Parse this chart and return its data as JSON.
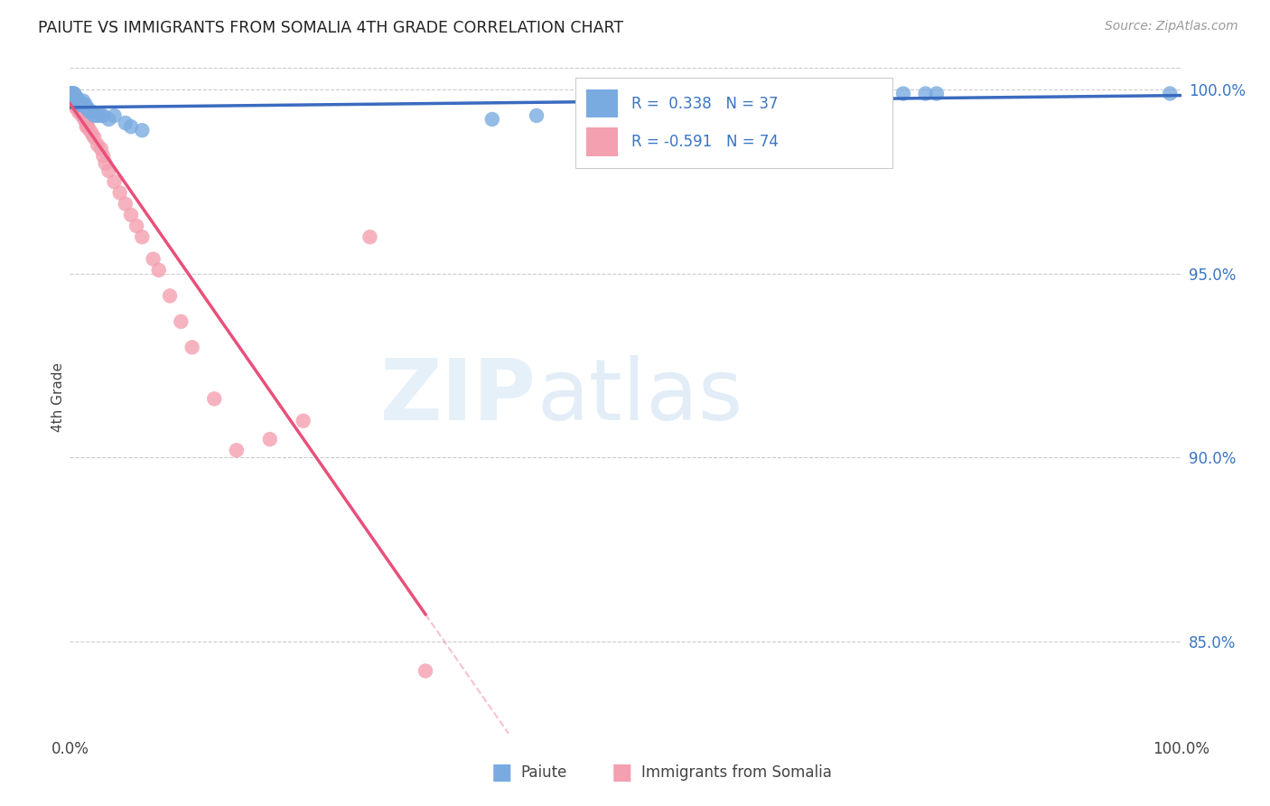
{
  "title": "PAIUTE VS IMMIGRANTS FROM SOMALIA 4TH GRADE CORRELATION CHART",
  "source": "Source: ZipAtlas.com",
  "ylabel": "4th Grade",
  "xlim": [
    0.0,
    1.0
  ],
  "ylim": [
    0.825,
    1.008
  ],
  "x_ticks": [
    0.0,
    0.1,
    0.2,
    0.3,
    0.4,
    0.5,
    0.6,
    0.7,
    0.8,
    0.9,
    1.0
  ],
  "y_ticks_right": [
    1.0,
    0.95,
    0.9,
    0.85
  ],
  "y_tick_labels_right": [
    "100.0%",
    "95.0%",
    "90.0%",
    "85.0%"
  ],
  "paiute_color": "#7aabe0",
  "somalia_color": "#f4a0b0",
  "paiute_line_color": "#3a6bbf",
  "somalia_line_color": "#e8507a",
  "R_paiute": 0.338,
  "N_paiute": 37,
  "R_somalia": -0.591,
  "N_somalia": 74,
  "grid_color": "#cccccc",
  "background_color": "#ffffff",
  "watermark_zip": "ZIP",
  "watermark_atlas": "atlas",
  "watermark_color_zip": "#c5d8f0",
  "watermark_color_atlas": "#b8cde8",
  "paiute_x": [
    0.001,
    0.002,
    0.002,
    0.003,
    0.003,
    0.004,
    0.004,
    0.005,
    0.006,
    0.007,
    0.008,
    0.009,
    0.01,
    0.011,
    0.012,
    0.013,
    0.014,
    0.015,
    0.016,
    0.018,
    0.02,
    0.022,
    0.025,
    0.028,
    0.03,
    0.035,
    0.04,
    0.05,
    0.055,
    0.065,
    0.38,
    0.42,
    0.71,
    0.75,
    0.77,
    0.78,
    0.99
  ],
  "paiute_y": [
    0.999,
    0.999,
    0.998,
    0.999,
    0.997,
    0.999,
    0.998,
    0.998,
    0.998,
    0.997,
    0.997,
    0.996,
    0.996,
    0.996,
    0.997,
    0.996,
    0.996,
    0.995,
    0.995,
    0.994,
    0.994,
    0.993,
    0.993,
    0.993,
    0.993,
    0.992,
    0.993,
    0.991,
    0.99,
    0.989,
    0.992,
    0.993,
    0.999,
    0.999,
    0.999,
    0.999,
    0.999
  ],
  "somalia_x": [
    0.001,
    0.001,
    0.001,
    0.001,
    0.001,
    0.002,
    0.002,
    0.002,
    0.002,
    0.002,
    0.002,
    0.002,
    0.002,
    0.003,
    0.003,
    0.003,
    0.003,
    0.003,
    0.003,
    0.003,
    0.003,
    0.003,
    0.004,
    0.004,
    0.004,
    0.004,
    0.004,
    0.004,
    0.005,
    0.005,
    0.005,
    0.005,
    0.006,
    0.006,
    0.006,
    0.006,
    0.007,
    0.007,
    0.008,
    0.008,
    0.009,
    0.009,
    0.01,
    0.011,
    0.012,
    0.013,
    0.015,
    0.015,
    0.016,
    0.018,
    0.02,
    0.022,
    0.025,
    0.028,
    0.03,
    0.032,
    0.035,
    0.04,
    0.045,
    0.05,
    0.055,
    0.06,
    0.065,
    0.075,
    0.08,
    0.09,
    0.1,
    0.11,
    0.13,
    0.15,
    0.18,
    0.21,
    0.27,
    0.32
  ],
  "somalia_y": [
    0.999,
    0.999,
    0.998,
    0.998,
    0.997,
    0.999,
    0.999,
    0.998,
    0.998,
    0.998,
    0.997,
    0.997,
    0.997,
    0.999,
    0.998,
    0.998,
    0.998,
    0.997,
    0.997,
    0.997,
    0.996,
    0.996,
    0.998,
    0.997,
    0.997,
    0.996,
    0.996,
    0.996,
    0.997,
    0.997,
    0.996,
    0.996,
    0.997,
    0.996,
    0.996,
    0.995,
    0.996,
    0.995,
    0.995,
    0.994,
    0.995,
    0.994,
    0.994,
    0.993,
    0.993,
    0.992,
    0.991,
    0.99,
    0.99,
    0.989,
    0.988,
    0.987,
    0.985,
    0.984,
    0.982,
    0.98,
    0.978,
    0.975,
    0.972,
    0.969,
    0.966,
    0.963,
    0.96,
    0.954,
    0.951,
    0.944,
    0.937,
    0.93,
    0.916,
    0.902,
    0.905,
    0.91,
    0.96,
    0.842
  ]
}
